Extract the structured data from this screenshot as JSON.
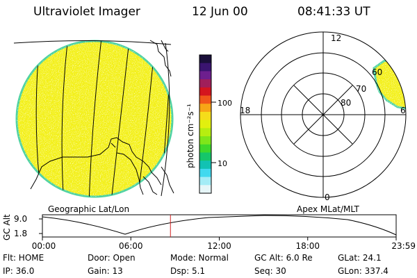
{
  "header": {
    "title": "Ultraviolet Imager",
    "date": "12 Jun 00",
    "time": "08:41:33 UT"
  },
  "panels": {
    "geo_label": "Geographic Lat/Lon",
    "polar_label": "Apex MLat/MLT"
  },
  "colorbar": {
    "unit_label": "photon cm⁻²s⁻¹",
    "tick_labels": [
      "100",
      "10"
    ],
    "colors": [
      "#1a0f3a",
      "#3a1470",
      "#6d1f8e",
      "#a01f5a",
      "#d4141e",
      "#f0561a",
      "#f7a516",
      "#f5dd1a",
      "#e2f00e",
      "#b6ee10",
      "#7fe61a",
      "#3ed82b",
      "#15c66a",
      "#12c2b3",
      "#41d9ef",
      "#a4ecf6",
      "#e6f6f8"
    ]
  },
  "polar": {
    "mlt_labels": {
      "top": "12",
      "left": "18",
      "right": "6",
      "bottom": "0"
    },
    "lat_labels": [
      "80",
      "70",
      "60"
    ]
  },
  "timeline": {
    "ylabel": "GC Alt",
    "ytick_top": "9.0",
    "ytick_bottom": "1.8",
    "xticks": [
      "00:00",
      "06:00",
      "12:00",
      "18:00",
      "23:59"
    ],
    "current_time_fraction": 0.362
  },
  "info": {
    "row1": [
      "Flt: HOME",
      "Door: Open",
      "Mode: Normal",
      "GC Alt: 6.0 Re",
      "GLat:  24.1"
    ],
    "row2": [
      "IP: 36.0",
      "Gain: 13",
      "Dsp:    5.1",
      "Seq: 30",
      "GLon: 337.4"
    ]
  },
  "colors": {
    "image_fill": "#f3f01a",
    "image_edge": "#4fd2a0",
    "cursor_line": "#d02020"
  }
}
